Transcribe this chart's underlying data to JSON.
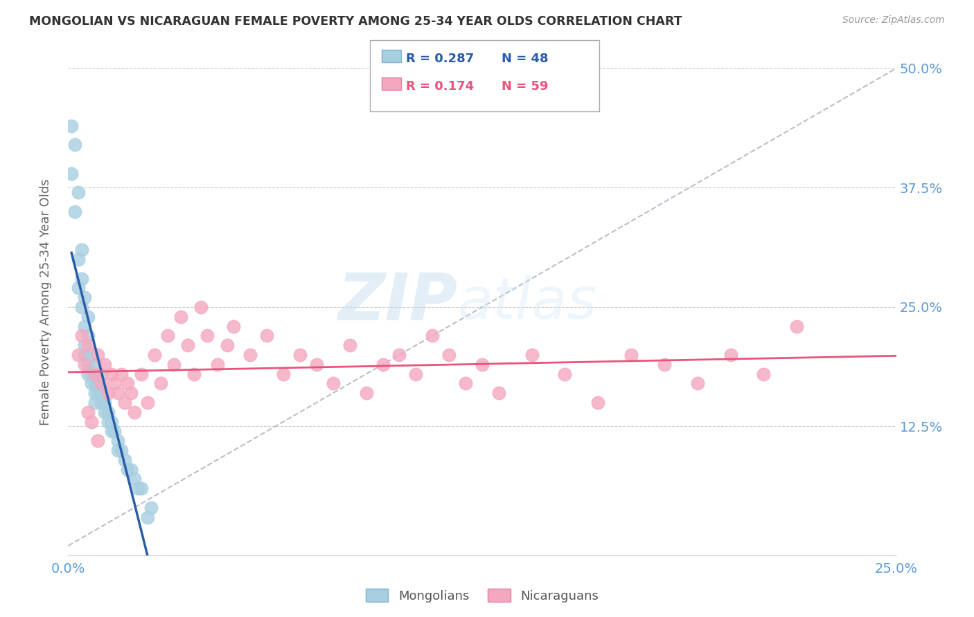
{
  "title": "MONGOLIAN VS NICARAGUAN FEMALE POVERTY AMONG 25-34 YEAR OLDS CORRELATION CHART",
  "source": "Source: ZipAtlas.com",
  "xlim": [
    0.0,
    0.25
  ],
  "ylim": [
    -0.01,
    0.52
  ],
  "ylabel_ticks": [
    0.0,
    0.125,
    0.25,
    0.375,
    0.5
  ],
  "ylabel_labels": [
    "",
    "12.5%",
    "25.0%",
    "37.5%",
    "50.0%"
  ],
  "xticks": [
    0.0,
    0.05,
    0.1,
    0.15,
    0.2,
    0.25
  ],
  "xlabels": [
    "0.0%",
    "",
    "",
    "",
    "",
    "25.0%"
  ],
  "legend_r1": "R = 0.287",
  "legend_n1": "N = 48",
  "legend_r2": "R = 0.174",
  "legend_n2": "N = 59",
  "mongolian_color": "#a8cfe0",
  "nicaraguan_color": "#f4a8bf",
  "mongolian_line_color": "#2a5caa",
  "nicaraguan_line_color": "#e8547a",
  "diagonal_color": "#b0b8c8",
  "ylabel": "Female Poverty Among 25-34 Year Olds",
  "title_color": "#333333",
  "axis_label_color": "#5b9bd5",
  "mongolians_x": [
    0.001,
    0.001,
    0.002,
    0.002,
    0.003,
    0.003,
    0.003,
    0.004,
    0.004,
    0.004,
    0.005,
    0.005,
    0.005,
    0.005,
    0.006,
    0.006,
    0.006,
    0.006,
    0.007,
    0.007,
    0.007,
    0.008,
    0.008,
    0.008,
    0.008,
    0.009,
    0.009,
    0.01,
    0.01,
    0.01,
    0.011,
    0.011,
    0.012,
    0.012,
    0.013,
    0.013,
    0.014,
    0.015,
    0.015,
    0.016,
    0.017,
    0.018,
    0.019,
    0.02,
    0.021,
    0.022,
    0.024,
    0.025
  ],
  "mongolians_y": [
    0.44,
    0.39,
    0.42,
    0.35,
    0.37,
    0.3,
    0.27,
    0.31,
    0.28,
    0.25,
    0.26,
    0.23,
    0.21,
    0.2,
    0.24,
    0.22,
    0.19,
    0.18,
    0.2,
    0.18,
    0.17,
    0.19,
    0.17,
    0.16,
    0.15,
    0.17,
    0.16,
    0.18,
    0.16,
    0.15,
    0.15,
    0.14,
    0.14,
    0.13,
    0.13,
    0.12,
    0.12,
    0.11,
    0.1,
    0.1,
    0.09,
    0.08,
    0.08,
    0.07,
    0.06,
    0.06,
    0.03,
    0.04
  ],
  "nicaraguans_x": [
    0.003,
    0.004,
    0.005,
    0.006,
    0.008,
    0.009,
    0.01,
    0.011,
    0.012,
    0.013,
    0.014,
    0.015,
    0.016,
    0.017,
    0.018,
    0.019,
    0.02,
    0.022,
    0.024,
    0.026,
    0.028,
    0.03,
    0.032,
    0.034,
    0.036,
    0.038,
    0.04,
    0.042,
    0.045,
    0.048,
    0.05,
    0.055,
    0.06,
    0.065,
    0.07,
    0.075,
    0.08,
    0.085,
    0.09,
    0.095,
    0.1,
    0.105,
    0.11,
    0.115,
    0.12,
    0.125,
    0.13,
    0.14,
    0.15,
    0.16,
    0.17,
    0.18,
    0.19,
    0.2,
    0.21,
    0.22,
    0.006,
    0.007,
    0.009
  ],
  "nicaraguans_y": [
    0.2,
    0.22,
    0.19,
    0.21,
    0.18,
    0.2,
    0.17,
    0.19,
    0.16,
    0.18,
    0.17,
    0.16,
    0.18,
    0.15,
    0.17,
    0.16,
    0.14,
    0.18,
    0.15,
    0.2,
    0.17,
    0.22,
    0.19,
    0.24,
    0.21,
    0.18,
    0.25,
    0.22,
    0.19,
    0.21,
    0.23,
    0.2,
    0.22,
    0.18,
    0.2,
    0.19,
    0.17,
    0.21,
    0.16,
    0.19,
    0.2,
    0.18,
    0.22,
    0.2,
    0.17,
    0.19,
    0.16,
    0.2,
    0.18,
    0.15,
    0.2,
    0.19,
    0.17,
    0.2,
    0.18,
    0.23,
    0.14,
    0.13,
    0.11
  ]
}
